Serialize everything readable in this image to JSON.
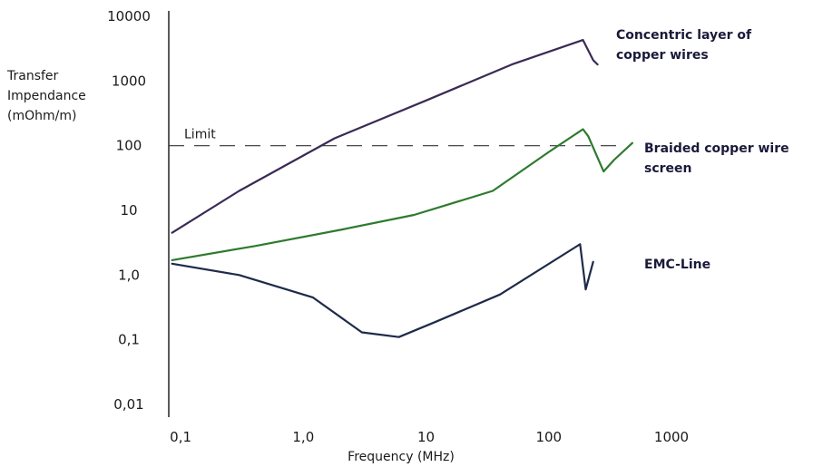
{
  "chart_data": {
    "type": "line",
    "title": "",
    "xlabel": "Frequency (MHz)",
    "ylabel": [
      "Transfer",
      "Impendance",
      "(mOhm/m)"
    ],
    "x_scale": "log",
    "y_scale": "log",
    "xlim": [
      0.08,
      1000
    ],
    "ylim": [
      0.01,
      10000
    ],
    "x_ticks": [
      {
        "value": 0.1,
        "label": "0,1"
      },
      {
        "value": 1,
        "label": "1,0"
      },
      {
        "value": 10,
        "label": "10"
      },
      {
        "value": 100,
        "label": "100"
      },
      {
        "value": 1000,
        "label": "1000"
      }
    ],
    "y_ticks": [
      {
        "value": 10000,
        "label": "10000"
      },
      {
        "value": 1000,
        "label": "1000"
      },
      {
        "value": 100,
        "label": "100"
      },
      {
        "value": 10,
        "label": "10"
      },
      {
        "value": 1,
        "label": "1,0"
      },
      {
        "value": 0.1,
        "label": "0,1"
      },
      {
        "value": 0.01,
        "label": "0,01"
      }
    ],
    "grid": false,
    "reference_lines": [
      {
        "name": "Limit",
        "value": 100,
        "style": "dashed",
        "color": "#333333"
      }
    ],
    "series": [
      {
        "name": [
          "Concentric layer of",
          "copper wires"
        ],
        "color": "#3a2a55",
        "points": [
          [
            0.085,
            4.5
          ],
          [
            0.3,
            20
          ],
          [
            1.8,
            130
          ],
          [
            10,
            500
          ],
          [
            50,
            1800
          ],
          [
            190,
            4300
          ],
          [
            230,
            2100
          ],
          [
            250,
            1800
          ]
        ]
      },
      {
        "name": [
          "Braided copper wire",
          "screen"
        ],
        "color": "#2e7a2e",
        "points": [
          [
            0.085,
            1.7
          ],
          [
            0.4,
            2.8
          ],
          [
            2,
            5
          ],
          [
            8,
            8.5
          ],
          [
            35,
            20
          ],
          [
            100,
            80
          ],
          [
            190,
            180
          ],
          [
            210,
            140
          ],
          [
            280,
            40
          ],
          [
            340,
            60
          ],
          [
            480,
            110
          ]
        ]
      },
      {
        "name": [
          "EMC-Line"
        ],
        "color": "#1f2a4a",
        "points": [
          [
            0.085,
            1.5
          ],
          [
            0.3,
            1.0
          ],
          [
            1.2,
            0.45
          ],
          [
            3,
            0.13
          ],
          [
            6,
            0.11
          ],
          [
            12,
            0.19
          ],
          [
            40,
            0.5
          ],
          [
            180,
            3
          ],
          [
            200,
            0.6
          ],
          [
            230,
            1.6
          ]
        ]
      }
    ]
  }
}
